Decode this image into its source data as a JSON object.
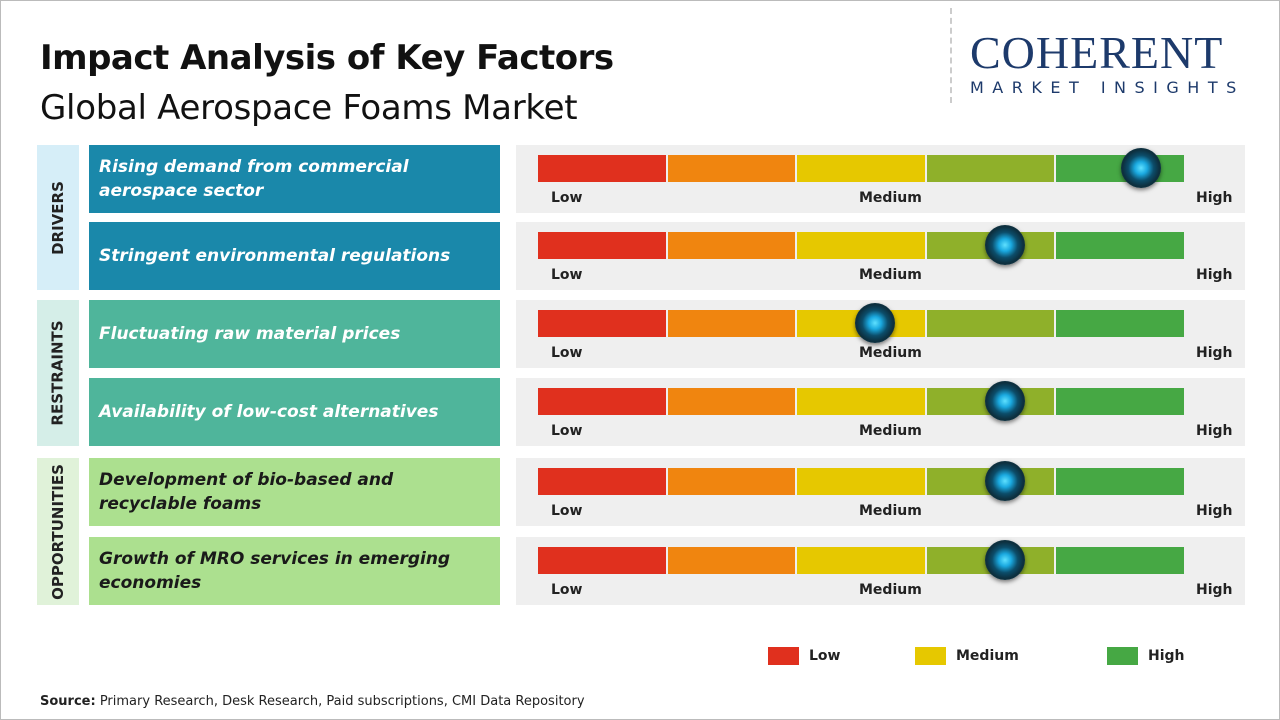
{
  "title": "Impact Analysis of Key Factors",
  "subtitle": "Global Aerospace Foams Market",
  "logo": {
    "line1": "COHERENT",
    "line2": "MARKET INSIGHTS"
  },
  "scale_labels": {
    "low": "Low",
    "medium": "Medium",
    "high": "High"
  },
  "scale_colors": [
    "#e0301e",
    "#f0850f",
    "#e6c800",
    "#8fb02a",
    "#46a844"
  ],
  "categories": [
    {
      "label": "DRIVERS",
      "band_color": "#d6eef8",
      "box_color": "#1a88aa",
      "text_color": "#ffffff"
    },
    {
      "label": "RESTRAINTS",
      "band_color": "#d5eee8",
      "box_color": "#4fb59b",
      "text_color": "#ffffff"
    },
    {
      "label": "OPPORTUNITIES",
      "band_color": "#e0f2d9",
      "box_color": "#ace08f",
      "text_color": "#1a1a1a"
    }
  ],
  "factors": [
    {
      "category": "DRIVERS",
      "text": "Rising demand from commercial aerospace sector",
      "impact": 0.93
    },
    {
      "category": "DRIVERS",
      "text": "Stringent environmental regulations",
      "impact": 0.72
    },
    {
      "category": "RESTRAINTS",
      "text": "Fluctuating raw material prices",
      "impact": 0.52
    },
    {
      "category": "RESTRAINTS",
      "text": "Availability of low-cost alternatives",
      "impact": 0.72
    },
    {
      "category": "OPPORTUNITIES",
      "text": "Development of bio-based and recyclable foams",
      "impact": 0.72
    },
    {
      "category": "OPPORTUNITIES",
      "text": "Growth of MRO services in emerging economies",
      "impact": 0.72
    }
  ],
  "legend": [
    {
      "label": "Low",
      "color": "#e0301e"
    },
    {
      "label": "Medium",
      "color": "#e6c800"
    },
    {
      "label": "High",
      "color": "#46a844"
    }
  ],
  "source": {
    "label": "Source:",
    "text": " Primary Research, Desk Research, Paid subscriptions, CMI Data Repository"
  }
}
